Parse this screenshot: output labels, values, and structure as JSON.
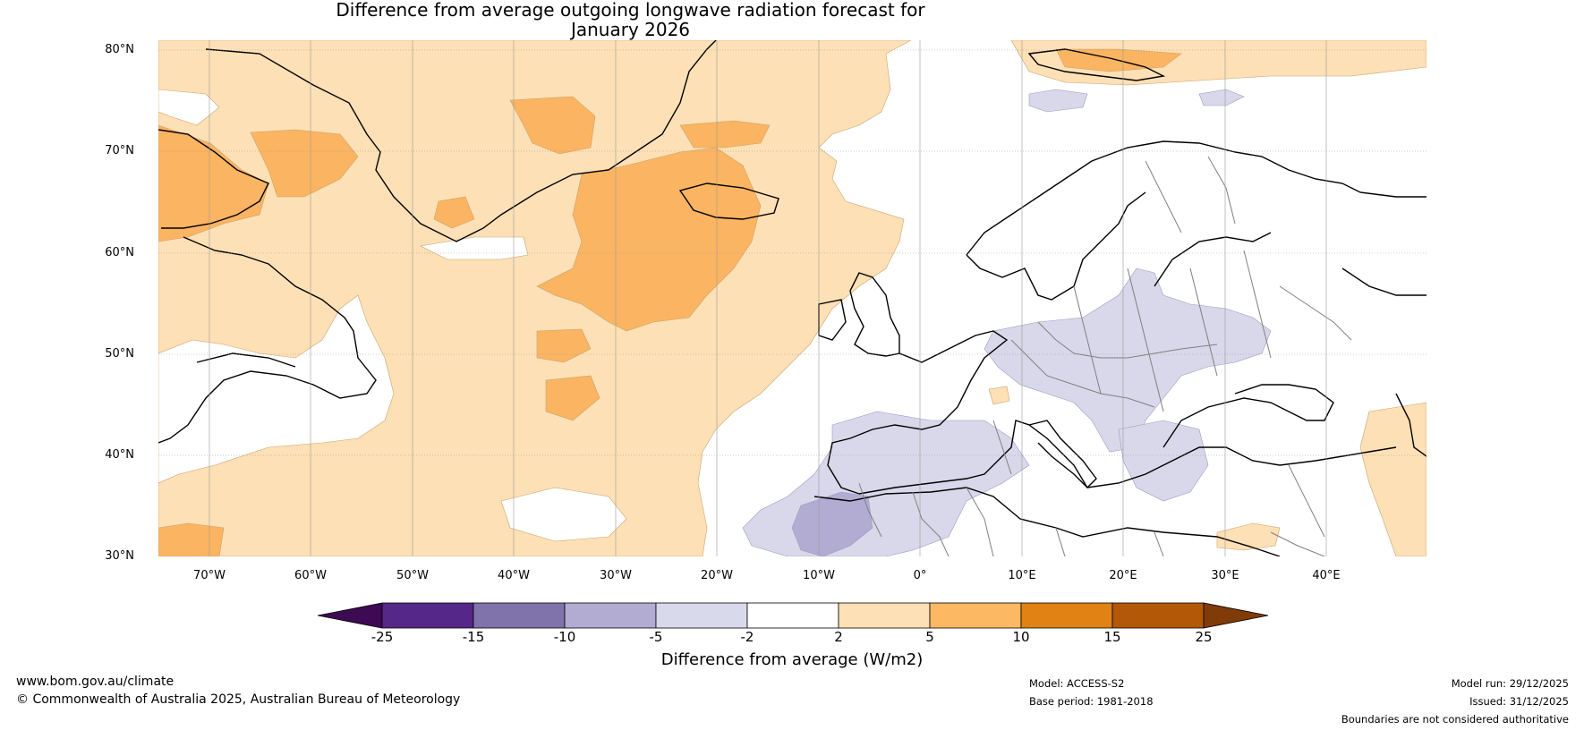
{
  "title": {
    "line1": "Difference from average outgoing longwave radiation forecast for",
    "line2": "January 2026"
  },
  "map": {
    "lat_labels": [
      "80°N",
      "70°N",
      "60°N",
      "50°N",
      "40°N",
      "30°N"
    ],
    "lon_labels": [
      "70°W",
      "60°W",
      "50°W",
      "40°W",
      "30°W",
      "20°W",
      "10°W",
      "0°",
      "10°E",
      "20°E",
      "30°E",
      "40°E"
    ],
    "colors": {
      "land": "#ffffff",
      "ocean": "#ffffff",
      "pos_2_5": "#fde0b5",
      "pos_5_10": "#fbb461",
      "neg_2_5": "#d8d8ea",
      "neg_5_10": "#b2abd2"
    }
  },
  "colorbar": {
    "title": "Difference from average (W/m2)",
    "ticks": [
      "-25",
      "-15",
      "-10",
      "-5",
      "-2",
      "2",
      "5",
      "10",
      "15",
      "25"
    ],
    "colors": [
      "#3f0a54",
      "#542788",
      "#8073ac",
      "#b2abd2",
      "#d8daeb",
      "#ffffff",
      "#fee0b6",
      "#fdb863",
      "#e08214",
      "#b35806",
      "#7f3b08"
    ]
  },
  "footer": {
    "site": "www.bom.gov.au/climate",
    "copyright": "© Commonwealth of Australia 2025, Australian Bureau of Meteorology",
    "model": "Model: ACCESS-S2",
    "base_period": "Base period: 1981-2018",
    "model_run": "Model run: 29/12/2025",
    "issued": "Issued: 31/12/2025",
    "disclaimer": "Boundaries are not considered authoritative"
  }
}
